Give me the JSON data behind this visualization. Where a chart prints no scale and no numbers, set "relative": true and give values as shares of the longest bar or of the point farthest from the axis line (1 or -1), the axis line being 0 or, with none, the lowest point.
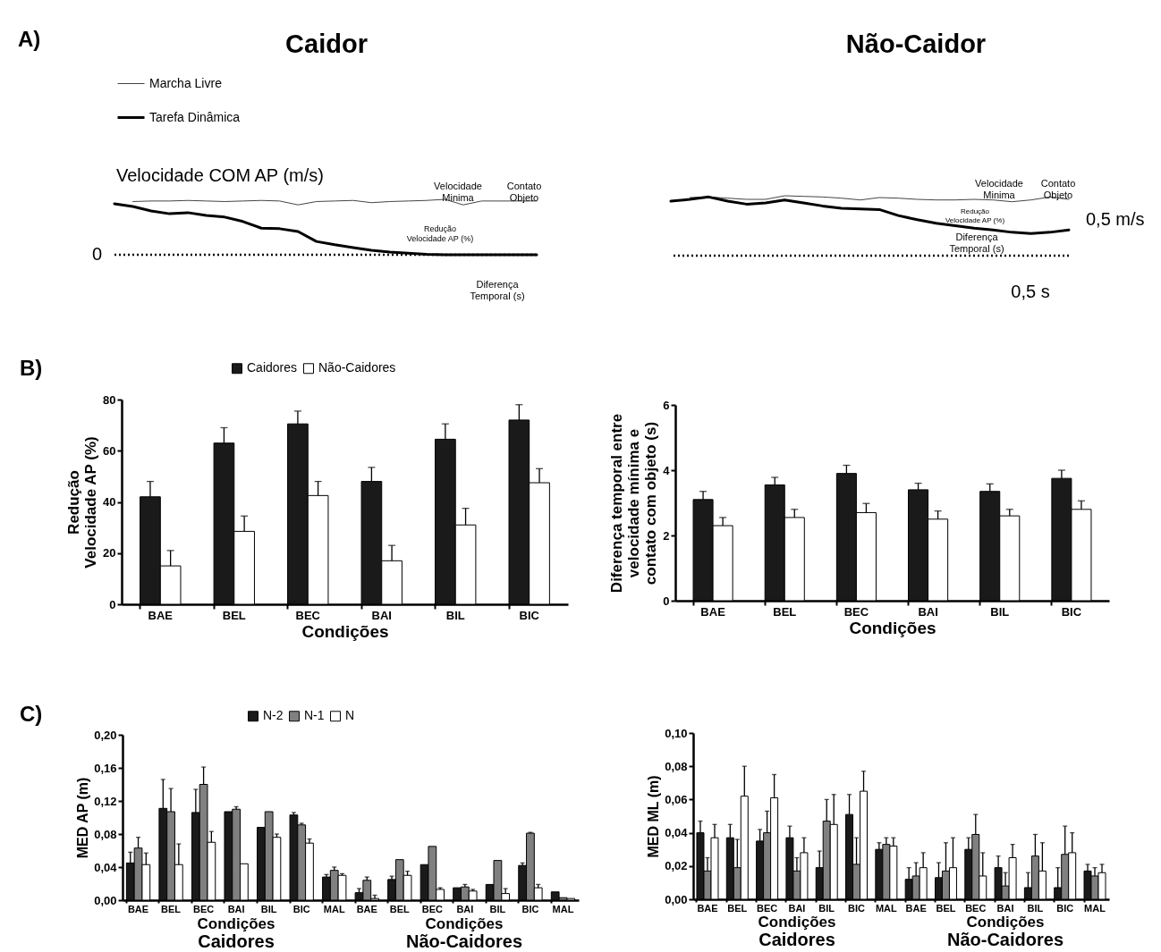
{
  "chart_data": [
    {
      "type": "line",
      "relative": true,
      "title": "Caidor",
      "ylabel": "Velocidade COM AP (m/s)",
      "legend": "top left",
      "categories": [
        null,
        null,
        null,
        null,
        null,
        null,
        null,
        null,
        null,
        null,
        null,
        null,
        null,
        null,
        null,
        null,
        null,
        null,
        null,
        null,
        null,
        null,
        null,
        null
      ],
      "series": [
        {
          "name": "Marcha Livre",
          "color": "#444444",
          "values": [
            null,
            0.96,
            0.97,
            0.97,
            0.98,
            0.97,
            0.96,
            0.97,
            0.98,
            0.97,
            0.9,
            0.96,
            0.97,
            0.98,
            0.94,
            0.96,
            0.97,
            0.98,
            1.0,
            0.9,
            0.97,
            0.97,
            0.97,
            0.97
          ]
        },
        {
          "name": "Tarefa Dinâmica",
          "color": "#000000",
          "values": [
            0.92,
            0.87,
            0.79,
            0.74,
            0.76,
            0.71,
            0.68,
            0.6,
            0.48,
            0.47,
            0.42,
            0.24,
            0.18,
            0.13,
            0.08,
            0.05,
            0.03,
            0.01,
            0,
            0,
            0,
            0,
            0,
            0
          ]
        }
      ],
      "ref_lines": [
        {
          "axis": "y",
          "value": 0,
          "label": "0",
          "line_style": "dotted",
          "color": "#000000"
        }
      ],
      "annotations": [
        "A)",
        "Velocidade\nMinima",
        "Contato\nObjeto",
        "Redução\nVelocidade AP (%)",
        "Diferença\nTemporal (s)"
      ]
    },
    {
      "type": "line",
      "relative": true,
      "title": "Não-Caidor",
      "categories": [
        null,
        null,
        null,
        null,
        null,
        null,
        null,
        null,
        null,
        null,
        null,
        null,
        null,
        null,
        null,
        null,
        null,
        null,
        null,
        null,
        null,
        null
      ],
      "series": [
        {
          "color": "#444444",
          "values": [
            null,
            0.97,
            0.98,
            0.96,
            0.94,
            0.94,
            1.0,
            0.99,
            0.98,
            0.96,
            0.93,
            0.97,
            0.96,
            0.94,
            0.93,
            0.93,
            0.94,
            0.93,
            0.9,
            0.93,
            0.98,
            0.94
          ]
        },
        {
          "color": "#000000",
          "values": [
            0.91,
            0.94,
            0.98,
            0.91,
            0.86,
            0.88,
            0.93,
            0.88,
            0.83,
            0.79,
            0.78,
            0.77,
            0.67,
            0.6,
            0.54,
            0.5,
            0.46,
            0.43,
            0.39,
            0.37,
            0.39,
            0.43
          ]
        }
      ],
      "ref_lines": [
        {
          "axis": "y",
          "value": 0,
          "label": null,
          "line_style": "dotted",
          "color": "#000000"
        }
      ],
      "annotations": [
        "Velocidade\nMinima",
        "Contato\nObjeto",
        "Redução\nVelocidade AP (%)",
        "Diferença\nTemporal (s)",
        "0,5 m/s",
        "0,5 s"
      ]
    },
    {
      "type": "bar",
      "xlabel": "Condições",
      "ylabel": "Redução\nVelocidade AP (%)",
      "legend": "top",
      "ylim": [
        0,
        80
      ],
      "yticks": [
        0,
        20,
        40,
        60,
        80
      ],
      "categories": [
        "BAE",
        "BEL",
        "BEC",
        "BAI",
        "BIL",
        "BIC"
      ],
      "series": [
        {
          "name": "Caidores",
          "color": "#1a1a1a",
          "values": [
            42,
            63,
            70.5,
            48,
            64.5,
            72
          ],
          "errors": [
            [
              42,
              48
            ],
            [
              63,
              69
            ],
            [
              70.5,
              75.5
            ],
            [
              48,
              53.5
            ],
            [
              64.5,
              70.5
            ],
            [
              72,
              78
            ]
          ]
        },
        {
          "name": "Não-Caidores",
          "color": "#ffffff",
          "values": [
            15,
            28.5,
            42.5,
            17,
            31,
            47.5
          ],
          "errors": [
            [
              15,
              21
            ],
            [
              28.5,
              34.5
            ],
            [
              42.5,
              48
            ],
            [
              17,
              23
            ],
            [
              31,
              37.5
            ],
            [
              47.5,
              53
            ]
          ]
        }
      ],
      "annotations": [
        "B)"
      ]
    },
    {
      "type": "bar",
      "xlabel": "Condições",
      "ylabel": "Diferença temporal entre\nvelocidade mínima e\ncontato com objeto (s)",
      "ylim": [
        0,
        6
      ],
      "yticks": [
        0,
        2,
        4,
        6
      ],
      "categories": [
        "BAE",
        "BEL",
        "BEC",
        "BAI",
        "BIL",
        "BIC"
      ],
      "series": [
        {
          "color": "#1a1a1a",
          "values": [
            3.1,
            3.55,
            3.9,
            3.4,
            3.35,
            3.75
          ],
          "errors": [
            [
              3.1,
              3.35
            ],
            [
              3.55,
              3.78
            ],
            [
              3.9,
              4.15
            ],
            [
              3.4,
              3.6
            ],
            [
              3.35,
              3.58
            ],
            [
              3.75,
              4.0
            ]
          ]
        },
        {
          "color": "#ffffff",
          "values": [
            2.3,
            2.55,
            2.7,
            2.5,
            2.6,
            2.8
          ],
          "errors": [
            [
              2.3,
              2.55
            ],
            [
              2.55,
              2.8
            ],
            [
              2.7,
              2.98
            ],
            [
              2.5,
              2.75
            ],
            [
              2.6,
              2.8
            ],
            [
              2.8,
              3.06
            ]
          ]
        }
      ]
    },
    {
      "type": "bar",
      "ylabel": "MED AP (m)",
      "legend": "top",
      "ylim": [
        0,
        0.2
      ],
      "yticks": [
        {
          "value": 0,
          "label": "0,00"
        },
        {
          "value": 0.04,
          "label": "0,04"
        },
        {
          "value": 0.08,
          "label": "0,08"
        },
        {
          "value": 0.12,
          "label": "0,12"
        },
        {
          "value": 0.16,
          "label": "0,16"
        },
        {
          "value": 0.2,
          "label": "0,20"
        }
      ],
      "categories": [
        "BAE",
        "BEL",
        "BEC",
        "BAI",
        "BIL",
        "BIC",
        "MAL",
        "BAE",
        "BEL",
        "BEC",
        "BAI",
        "BIL",
        "BIC",
        "MAL"
      ],
      "series": [
        {
          "name": "N-2",
          "color": "#1a1a1a",
          "values": [
            0.045,
            0.111,
            0.106,
            0.107,
            0.088,
            0.103,
            0.028,
            0.009,
            0.025,
            0.043,
            0.015,
            0.019,
            0.042,
            0.01
          ],
          "errors": [
            [
              0.045,
              0.058
            ],
            [
              0.111,
              0.146
            ],
            [
              0.106,
              0.134
            ],
            null,
            null,
            [
              0.103,
              0.106
            ],
            [
              0.028,
              0.031
            ],
            [
              0.009,
              0.014
            ],
            [
              0.025,
              0.029
            ],
            null,
            null,
            null,
            [
              0.042,
              0.045
            ],
            null
          ]
        },
        {
          "name": "N-1",
          "color": "#808080",
          "values": [
            0.063,
            0.107,
            0.14,
            0.11,
            0.107,
            0.091,
            0.036,
            0.024,
            0.049,
            0.065,
            0.016,
            0.048,
            0.081,
            0.003
          ],
          "errors": [
            [
              0.063,
              0.076
            ],
            [
              0.107,
              0.135
            ],
            [
              0.14,
              0.161
            ],
            [
              0.11,
              0.113
            ],
            null,
            [
              0.091,
              0.093
            ],
            [
              0.036,
              0.04
            ],
            [
              0.024,
              0.028
            ],
            null,
            null,
            [
              0.016,
              0.019
            ],
            null,
            [
              0.081,
              0.082
            ],
            null
          ]
        },
        {
          "name": "N",
          "color": "#ffffff",
          "values": [
            0.043,
            0.043,
            0.07,
            0.044,
            0.076,
            0.069,
            0.03,
            0.002,
            0.03,
            0.013,
            0.011,
            0.008,
            0.015,
            0.002
          ],
          "errors": [
            [
              0.043,
              0.057
            ],
            [
              0.043,
              0.068
            ],
            [
              0.07,
              0.083
            ],
            null,
            [
              0.076,
              0.08
            ],
            [
              0.069,
              0.074
            ],
            [
              0.03,
              0.032
            ],
            [
              0.002,
              0.006
            ],
            [
              0.03,
              0.035
            ],
            [
              0.013,
              0.015
            ],
            [
              0.011,
              0.013
            ],
            [
              0.008,
              0.014
            ],
            [
              0.015,
              0.019
            ],
            null
          ]
        }
      ],
      "annotations": [
        "C)",
        "Condições",
        "Caidores",
        "Condições",
        "Não-Caidores"
      ]
    },
    {
      "type": "bar",
      "ylabel": "MED ML (m)",
      "ylim": [
        0,
        0.1
      ],
      "yticks": [
        {
          "value": 0,
          "label": "0,00"
        },
        {
          "value": 0.02,
          "label": "0,02"
        },
        {
          "value": 0.04,
          "label": "0,04"
        },
        {
          "value": 0.06,
          "label": "0,06"
        },
        {
          "value": 0.08,
          "label": "0,08"
        },
        {
          "value": 0.1,
          "label": "0,10"
        }
      ],
      "categories": [
        "BAE",
        "BEL",
        "BEC",
        "BAI",
        "BIL",
        "BIC",
        "MAL",
        "BAE",
        "BEL",
        "BEC",
        "BAI",
        "BIL",
        "BIC",
        "MAL"
      ],
      "series": [
        {
          "color": "#1a1a1a",
          "values": [
            0.04,
            0.037,
            0.035,
            0.037,
            0.019,
            0.051,
            0.03,
            0.012,
            0.013,
            0.03,
            0.019,
            0.007,
            0.007,
            0.017
          ],
          "errors": [
            [
              0.04,
              0.047
            ],
            [
              0.037,
              0.045
            ],
            [
              0.035,
              0.042
            ],
            [
              0.037,
              0.044
            ],
            [
              0.019,
              0.029
            ],
            [
              0.051,
              0.063
            ],
            [
              0.03,
              0.034
            ],
            [
              0.012,
              0.019
            ],
            [
              0.013,
              0.022
            ],
            [
              0.03,
              0.037
            ],
            [
              0.019,
              0.026
            ],
            [
              0.007,
              0.016
            ],
            [
              0.007,
              0.019
            ],
            [
              0.017,
              0.021
            ]
          ]
        },
        {
          "color": "#808080",
          "values": [
            0.017,
            0.019,
            0.04,
            0.017,
            0.047,
            0.021,
            0.033,
            0.014,
            0.017,
            0.039,
            0.008,
            0.026,
            0.027,
            0.014
          ],
          "errors": [
            [
              0.017,
              0.025
            ],
            [
              0.019,
              0.036
            ],
            [
              0.04,
              0.053
            ],
            [
              0.017,
              0.025
            ],
            [
              0.047,
              0.06
            ],
            [
              0.021,
              0.037
            ],
            [
              0.033,
              0.037
            ],
            [
              0.014,
              0.022
            ],
            [
              0.017,
              0.034
            ],
            [
              0.039,
              0.051
            ],
            [
              0.008,
              0.016
            ],
            [
              0.026,
              0.039
            ],
            [
              0.027,
              0.044
            ],
            [
              0.014,
              0.019
            ]
          ]
        },
        {
          "color": "#ffffff",
          "values": [
            0.037,
            0.062,
            0.061,
            0.028,
            0.045,
            0.065,
            0.032,
            0.019,
            0.019,
            0.014,
            0.025,
            0.017,
            0.028,
            0.016
          ],
          "errors": [
            [
              0.037,
              0.045
            ],
            [
              0.062,
              0.08
            ],
            [
              0.061,
              0.075
            ],
            [
              0.028,
              0.037
            ],
            [
              0.045,
              0.063
            ],
            [
              0.065,
              0.077
            ],
            [
              0.032,
              0.037
            ],
            [
              0.019,
              0.028
            ],
            [
              0.019,
              0.037
            ],
            [
              0.014,
              0.028
            ],
            [
              0.025,
              0.033
            ],
            [
              0.017,
              0.034
            ],
            [
              0.028,
              0.04
            ],
            [
              0.016,
              0.021
            ]
          ]
        }
      ],
      "annotations": [
        "Condições",
        "Caidores",
        "Condições",
        "Não-Caidores"
      ]
    }
  ]
}
